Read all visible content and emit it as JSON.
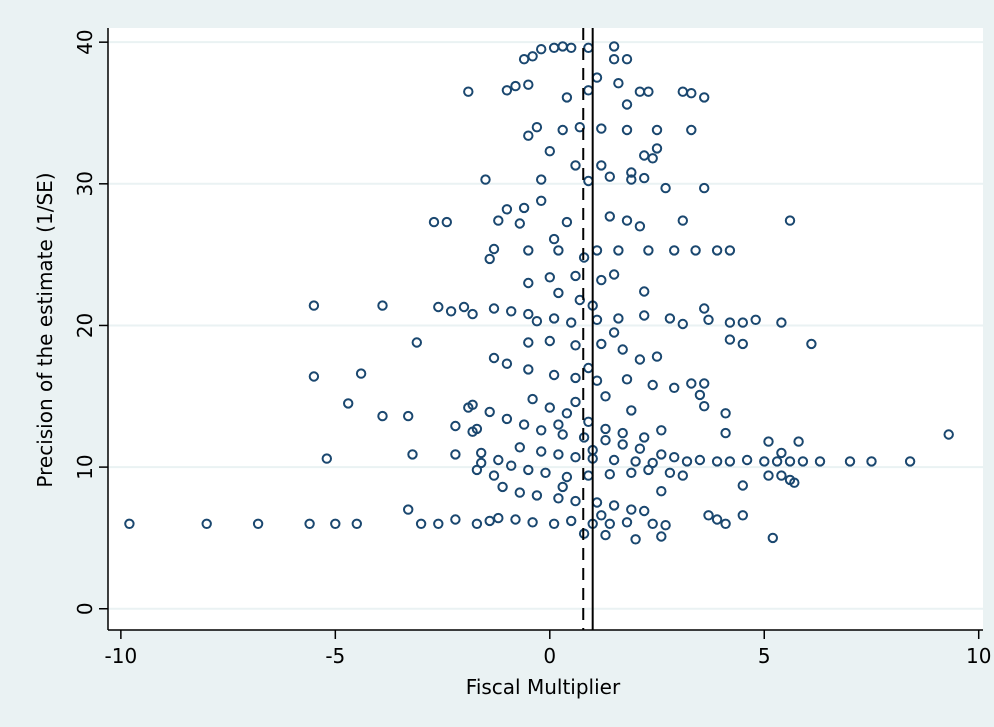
{
  "chart_data": {
    "type": "scatter",
    "title": "",
    "xlabel": "Fiscal Multiplier",
    "ylabel": "Precision of the estimate (1/SE)",
    "xlim": [
      -10.3,
      10.1
    ],
    "ylim": [
      -1.5,
      41
    ],
    "xticks": [
      -10,
      -5,
      0,
      5,
      10
    ],
    "xtick_labels": [
      "-10",
      "-5",
      "0",
      "5",
      "10"
    ],
    "yticks": [
      0,
      10,
      20,
      30,
      40
    ],
    "ytick_labels": [
      "0",
      "10",
      "20",
      "30",
      "40"
    ],
    "grid": "horizontal",
    "legend": "none",
    "reference_lines": [
      {
        "x": 0.78,
        "style": "dashed"
      },
      {
        "x": 1.0,
        "style": "solid"
      }
    ],
    "marker": {
      "shape": "hollow-circle",
      "color": "#1a476f"
    },
    "colors": {
      "background": "#eaf2f3",
      "plot_area": "#ffffff",
      "gridline": "#eaf2f3",
      "marker": "#1a476f",
      "reference_line": "#000000"
    },
    "series": [
      {
        "values": [
          [
            -9.8,
            6.0
          ],
          [
            -8.0,
            6.0
          ],
          [
            -6.8,
            6.0
          ],
          [
            -5.6,
            6.0
          ],
          [
            -5.0,
            6.0
          ],
          [
            -4.5,
            6.0
          ],
          [
            -3.3,
            7.0
          ],
          [
            -3.0,
            6.0
          ],
          [
            -2.6,
            6.0
          ],
          [
            -2.2,
            6.3
          ],
          [
            -1.7,
            6.0
          ],
          [
            -1.4,
            6.2
          ],
          [
            -5.5,
            21.4
          ],
          [
            -3.9,
            21.4
          ],
          [
            -5.5,
            16.4
          ],
          [
            -4.4,
            16.6
          ],
          [
            -4.7,
            14.5
          ],
          [
            -3.9,
            13.6
          ],
          [
            -3.3,
            13.6
          ],
          [
            -5.2,
            10.6
          ],
          [
            -3.2,
            10.9
          ],
          [
            -3.1,
            18.8
          ],
          [
            -2.7,
            27.3
          ],
          [
            -2.4,
            27.3
          ],
          [
            -1.9,
            36.5
          ],
          [
            -2.6,
            21.3
          ],
          [
            -2.3,
            21.0
          ],
          [
            -2.0,
            21.3
          ],
          [
            -1.8,
            20.8
          ],
          [
            -2.2,
            10.9
          ],
          [
            -1.9,
            14.2
          ],
          [
            -1.8,
            12.5
          ],
          [
            -1.7,
            9.8
          ],
          [
            -1.5,
            30.3
          ],
          [
            -1.4,
            24.7
          ],
          [
            -1.2,
            27.4
          ],
          [
            -1.0,
            36.6
          ],
          [
            -0.8,
            36.9
          ],
          [
            -0.6,
            38.8
          ],
          [
            -0.4,
            39.0
          ],
          [
            -0.2,
            39.5
          ],
          [
            0.1,
            39.6
          ],
          [
            0.3,
            39.7
          ],
          [
            0.5,
            39.6
          ],
          [
            0.9,
            39.6
          ],
          [
            1.5,
            39.7
          ],
          [
            1.5,
            38.8
          ],
          [
            1.8,
            38.8
          ],
          [
            -0.5,
            33.4
          ],
          [
            -0.3,
            34.0
          ],
          [
            0.0,
            32.3
          ],
          [
            0.3,
            33.8
          ],
          [
            0.7,
            34.0
          ],
          [
            1.2,
            33.9
          ],
          [
            1.8,
            33.8
          ],
          [
            2.5,
            33.8
          ],
          [
            3.3,
            33.8
          ],
          [
            1.8,
            35.6
          ],
          [
            2.1,
            36.5
          ],
          [
            2.3,
            36.5
          ],
          [
            3.1,
            36.5
          ],
          [
            3.3,
            36.4
          ],
          [
            3.6,
            36.1
          ],
          [
            2.2,
            32.0
          ],
          [
            2.4,
            31.8
          ],
          [
            2.5,
            32.5
          ],
          [
            1.9,
            30.8
          ],
          [
            2.2,
            30.4
          ],
          [
            2.7,
            29.7
          ],
          [
            3.6,
            29.7
          ],
          [
            0.6,
            31.3
          ],
          [
            1.2,
            31.3
          ],
          [
            1.4,
            30.5
          ],
          [
            -1.0,
            28.2
          ],
          [
            -0.6,
            28.3
          ],
          [
            -0.2,
            28.8
          ],
          [
            0.4,
            27.3
          ],
          [
            1.4,
            27.7
          ],
          [
            1.8,
            27.4
          ],
          [
            2.1,
            27.0
          ],
          [
            3.1,
            27.4
          ],
          [
            5.6,
            27.4
          ],
          [
            -1.3,
            25.4
          ],
          [
            -0.5,
            25.3
          ],
          [
            0.2,
            25.3
          ],
          [
            1.1,
            25.3
          ],
          [
            1.6,
            25.3
          ],
          [
            2.3,
            25.3
          ],
          [
            2.9,
            25.3
          ],
          [
            3.4,
            25.3
          ],
          [
            3.9,
            25.3
          ],
          [
            4.2,
            25.3
          ],
          [
            -0.5,
            23.0
          ],
          [
            0.0,
            23.4
          ],
          [
            0.6,
            23.5
          ],
          [
            1.2,
            23.2
          ],
          [
            1.5,
            23.6
          ],
          [
            2.2,
            22.4
          ],
          [
            -1.3,
            21.2
          ],
          [
            -0.9,
            21.0
          ],
          [
            -0.5,
            20.8
          ],
          [
            0.1,
            20.5
          ],
          [
            0.5,
            20.2
          ],
          [
            1.1,
            20.4
          ],
          [
            1.6,
            20.5
          ],
          [
            2.2,
            20.7
          ],
          [
            2.8,
            20.5
          ],
          [
            3.1,
            20.1
          ],
          [
            3.6,
            21.2
          ],
          [
            3.7,
            20.4
          ],
          [
            4.2,
            20.2
          ],
          [
            4.5,
            20.2
          ],
          [
            4.8,
            20.4
          ],
          [
            5.4,
            20.2
          ],
          [
            4.2,
            19.0
          ],
          [
            4.5,
            18.7
          ],
          [
            6.1,
            18.7
          ],
          [
            -0.5,
            18.8
          ],
          [
            0.0,
            18.9
          ],
          [
            0.6,
            18.6
          ],
          [
            1.2,
            18.7
          ],
          [
            1.7,
            18.3
          ],
          [
            2.1,
            17.6
          ],
          [
            2.5,
            17.8
          ],
          [
            -1.3,
            17.7
          ],
          [
            -1.0,
            17.3
          ],
          [
            -0.5,
            16.9
          ],
          [
            0.1,
            16.5
          ],
          [
            0.6,
            16.3
          ],
          [
            1.1,
            16.1
          ],
          [
            1.8,
            16.2
          ],
          [
            2.4,
            15.8
          ],
          [
            2.9,
            15.6
          ],
          [
            3.3,
            15.9
          ],
          [
            3.6,
            15.9
          ],
          [
            3.5,
            15.1
          ],
          [
            3.6,
            14.3
          ],
          [
            4.1,
            13.8
          ],
          [
            -1.8,
            14.4
          ],
          [
            -1.4,
            13.9
          ],
          [
            -1.0,
            13.4
          ],
          [
            -0.6,
            13.0
          ],
          [
            -0.2,
            12.6
          ],
          [
            0.3,
            12.3
          ],
          [
            0.8,
            12.1
          ],
          [
            1.3,
            11.9
          ],
          [
            1.7,
            11.6
          ],
          [
            2.1,
            11.3
          ],
          [
            2.6,
            10.9
          ],
          [
            2.9,
            10.7
          ],
          [
            3.2,
            10.4
          ],
          [
            3.5,
            10.5
          ],
          [
            3.9,
            10.4
          ],
          [
            4.2,
            10.4
          ],
          [
            4.6,
            10.5
          ],
          [
            5.0,
            10.4
          ],
          [
            5.3,
            10.4
          ],
          [
            5.6,
            10.4
          ],
          [
            5.9,
            10.4
          ],
          [
            6.3,
            10.4
          ],
          [
            7.0,
            10.4
          ],
          [
            7.5,
            10.4
          ],
          [
            8.4,
            10.4
          ],
          [
            9.3,
            12.3
          ],
          [
            5.1,
            11.8
          ],
          [
            5.4,
            11.0
          ],
          [
            5.8,
            11.8
          ],
          [
            4.1,
            12.4
          ],
          [
            5.1,
            9.4
          ],
          [
            5.4,
            9.4
          ],
          [
            5.6,
            9.1
          ],
          [
            5.7,
            8.9
          ],
          [
            4.5,
            8.7
          ],
          [
            2.6,
            8.3
          ],
          [
            -1.6,
            10.3
          ],
          [
            -1.2,
            10.5
          ],
          [
            -0.9,
            10.1
          ],
          [
            -0.5,
            9.8
          ],
          [
            -0.1,
            9.6
          ],
          [
            0.4,
            9.3
          ],
          [
            0.9,
            9.4
          ],
          [
            1.4,
            9.5
          ],
          [
            1.9,
            9.6
          ],
          [
            2.3,
            9.8
          ],
          [
            2.8,
            9.6
          ],
          [
            3.1,
            9.4
          ],
          [
            -1.1,
            8.6
          ],
          [
            -0.7,
            8.2
          ],
          [
            -0.3,
            8.0
          ],
          [
            0.2,
            7.8
          ],
          [
            0.6,
            7.6
          ],
          [
            1.1,
            7.5
          ],
          [
            1.5,
            7.3
          ],
          [
            1.9,
            7.0
          ],
          [
            2.2,
            6.9
          ],
          [
            -1.2,
            6.4
          ],
          [
            -0.8,
            6.3
          ],
          [
            -0.4,
            6.1
          ],
          [
            0.1,
            6.0
          ],
          [
            0.5,
            6.2
          ],
          [
            1.0,
            6.0
          ],
          [
            1.4,
            6.0
          ],
          [
            1.8,
            6.1
          ],
          [
            2.4,
            6.0
          ],
          [
            2.7,
            5.9
          ],
          [
            3.7,
            6.6
          ],
          [
            3.9,
            6.3
          ],
          [
            4.1,
            6.0
          ],
          [
            4.5,
            6.6
          ],
          [
            0.8,
            5.3
          ],
          [
            1.3,
            5.2
          ],
          [
            2.0,
            4.9
          ],
          [
            2.6,
            5.1
          ],
          [
            5.2,
            5.0
          ],
          [
            -0.4,
            14.8
          ],
          [
            0.0,
            14.2
          ],
          [
            0.4,
            13.8
          ],
          [
            0.9,
            13.2
          ],
          [
            1.3,
            12.7
          ],
          [
            1.7,
            12.4
          ],
          [
            2.2,
            12.1
          ],
          [
            2.6,
            12.6
          ],
          [
            -0.7,
            11.4
          ],
          [
            -0.2,
            11.1
          ],
          [
            0.2,
            10.9
          ],
          [
            0.6,
            10.7
          ],
          [
            1.0,
            10.6
          ],
          [
            1.5,
            10.5
          ],
          [
            2.0,
            10.4
          ],
          [
            2.4,
            10.3
          ],
          [
            -2.2,
            12.9
          ],
          [
            -1.7,
            12.7
          ],
          [
            -1.6,
            11.0
          ],
          [
            -1.3,
            9.4
          ],
          [
            0.9,
            36.6
          ],
          [
            0.4,
            36.1
          ],
          [
            -0.5,
            37.0
          ],
          [
            1.1,
            37.5
          ],
          [
            1.6,
            37.1
          ],
          [
            -0.2,
            30.3
          ],
          [
            0.9,
            30.2
          ],
          [
            1.9,
            30.3
          ],
          [
            -0.7,
            27.2
          ],
          [
            0.1,
            26.1
          ],
          [
            0.8,
            24.8
          ],
          [
            0.2,
            22.3
          ],
          [
            0.7,
            21.8
          ],
          [
            1.0,
            21.4
          ],
          [
            -0.3,
            20.3
          ],
          [
            1.5,
            19.5
          ],
          [
            0.9,
            17.0
          ],
          [
            1.3,
            15.0
          ],
          [
            0.6,
            14.6
          ],
          [
            1.9,
            14.0
          ],
          [
            0.2,
            13.0
          ],
          [
            1.0,
            11.2
          ],
          [
            0.3,
            8.6
          ],
          [
            1.2,
            6.6
          ]
        ]
      }
    ]
  }
}
